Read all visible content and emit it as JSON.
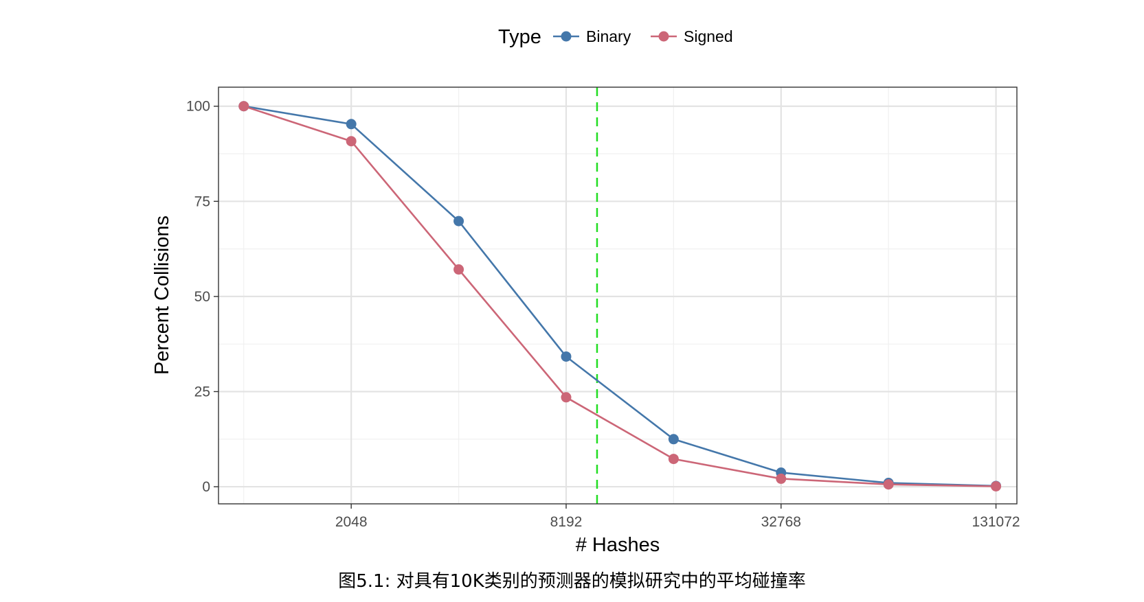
{
  "caption": "图5.1: 对具有10K类别的预测器的模拟研究中的平均碰撞率",
  "chart_data": {
    "type": "line",
    "x_scale": "log2",
    "x": [
      1024,
      2048,
      4096,
      8192,
      16384,
      32768,
      65536,
      131072
    ],
    "xticks": [
      2048,
      8192,
      32768,
      131072
    ],
    "xtick_labels": [
      "2048",
      "8192",
      "32768",
      "131072"
    ],
    "yticks": [
      0,
      25,
      50,
      75,
      100
    ],
    "ytick_labels": [
      "0",
      "25",
      "50",
      "75",
      "100"
    ],
    "xlim": [
      870,
      150000
    ],
    "ylim": [
      -4.5,
      105
    ],
    "xlabel": "# Hashes",
    "ylabel": "Percent Collisions",
    "grid": true,
    "legend": {
      "title": "Type",
      "position": "top"
    },
    "series": [
      {
        "name": "Binary",
        "color": "#4477aa",
        "values": [
          100,
          95.3,
          69.8,
          34.2,
          12.5,
          3.7,
          1.0,
          0.2
        ]
      },
      {
        "name": "Signed",
        "color": "#cc6677",
        "values": [
          100,
          90.8,
          57.1,
          23.5,
          7.3,
          2.1,
          0.6,
          0.1
        ]
      }
    ],
    "reference_line": {
      "axis": "x",
      "value": 10000,
      "color": "#22dd22",
      "style": "dashed"
    }
  }
}
